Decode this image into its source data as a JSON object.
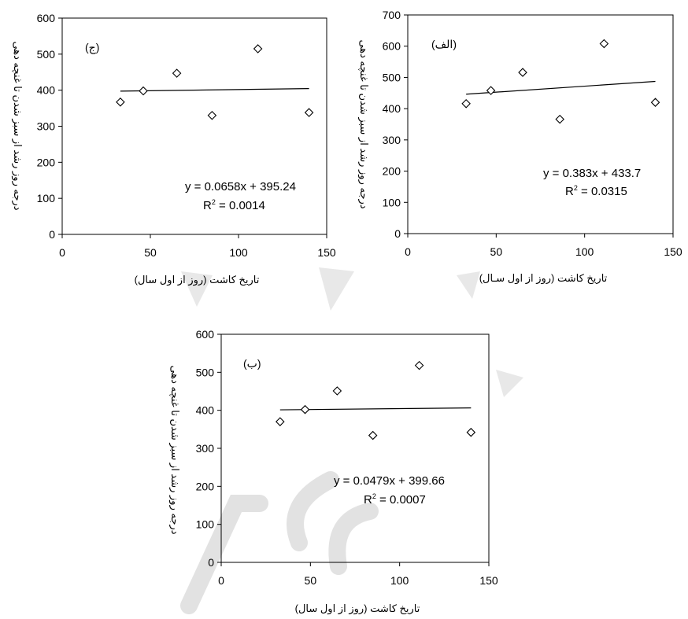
{
  "chart_data": [
    {
      "type": "scatter",
      "id": "chart-jim",
      "panel_label": "(ج)",
      "xlabel": "تاریخ کاشت (روز از اول سال)",
      "ylabel": "درجه روز رشد از سبز شدن تا غنچه دهی",
      "xlim": [
        0,
        150
      ],
      "ylim": [
        0,
        600
      ],
      "xticks": [
        0,
        50,
        100,
        150
      ],
      "yticks": [
        0,
        100,
        200,
        300,
        400,
        500,
        600
      ],
      "grid": false,
      "marker": "diamond-open",
      "points": [
        {
          "x": 33,
          "y": 367
        },
        {
          "x": 46,
          "y": 398
        },
        {
          "x": 65,
          "y": 447
        },
        {
          "x": 85,
          "y": 330
        },
        {
          "x": 111,
          "y": 515
        },
        {
          "x": 140,
          "y": 338
        }
      ],
      "trendline": {
        "slope": 0.0658,
        "intercept": 395.24,
        "x_range": [
          33,
          140
        ]
      },
      "equation": "y = 0.0658x + 395.24",
      "r2_label": "R",
      "r2_value": " = 0.0014"
    },
    {
      "type": "scatter",
      "id": "chart-alef",
      "panel_label": "(الف)",
      "xlabel": "تاریخ کاشت (روز از اول سـال)",
      "ylabel": "درجه روز رشد از سبز شدن تا غنچه دهی",
      "xlim": [
        0,
        150
      ],
      "ylim": [
        0,
        700
      ],
      "xticks": [
        0,
        50,
        100,
        150
      ],
      "yticks": [
        0,
        100,
        200,
        300,
        400,
        500,
        600,
        700
      ],
      "grid": false,
      "marker": "diamond-open",
      "points": [
        {
          "x": 33,
          "y": 416
        },
        {
          "x": 47,
          "y": 458
        },
        {
          "x": 65,
          "y": 516
        },
        {
          "x": 86,
          "y": 366
        },
        {
          "x": 111,
          "y": 608
        },
        {
          "x": 140,
          "y": 420
        }
      ],
      "trendline": {
        "slope": 0.383,
        "intercept": 433.7,
        "x_range": [
          33,
          140
        ]
      },
      "equation": "y = 0.383x + 433.7",
      "r2_label": "R",
      "r2_value": " = 0.0315"
    },
    {
      "type": "scatter",
      "id": "chart-be",
      "panel_label": "(ب)",
      "xlabel": "تاریخ کاشت (روز از اول سال)",
      "ylabel": "درجه روز رشد از سبز شدن تا غنچه دهی",
      "xlim": [
        0,
        150
      ],
      "ylim": [
        0,
        600
      ],
      "xticks": [
        0,
        50,
        100,
        150
      ],
      "yticks": [
        0,
        100,
        200,
        300,
        400,
        500,
        600
      ],
      "grid": false,
      "marker": "diamond-open",
      "points": [
        {
          "x": 33,
          "y": 370
        },
        {
          "x": 47,
          "y": 402
        },
        {
          "x": 65,
          "y": 451
        },
        {
          "x": 85,
          "y": 334
        },
        {
          "x": 111,
          "y": 518
        },
        {
          "x": 140,
          "y": 342
        }
      ],
      "trendline": {
        "slope": 0.0479,
        "intercept": 399.66,
        "x_range": [
          33,
          140
        ]
      },
      "equation": "y = 0.0479x + 399.66",
      "r2_label": "R",
      "r2_value": " = 0.0007"
    }
  ],
  "r2_superscript": "2"
}
